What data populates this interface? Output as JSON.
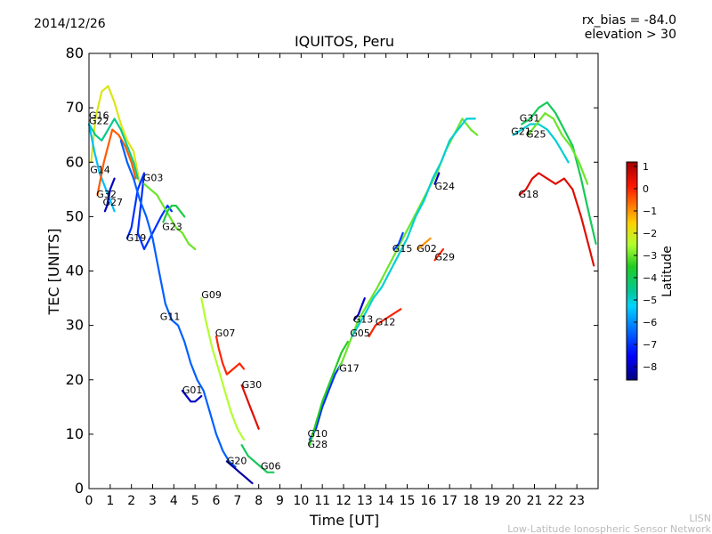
{
  "header": {
    "date": "2014/12/26",
    "bias": "rx_bias = -84.0",
    "elevation": "elevation > 30"
  },
  "credit": {
    "line1": "LISN",
    "line2": "Low-Latitude Ionospheric Sensor Network"
  },
  "colorbar": {
    "label": "Latitude",
    "min": -8.6,
    "max": 1.2,
    "ticks": [
      "1",
      "0",
      "−1",
      "−2",
      "−3",
      "−4",
      "−5",
      "−6",
      "−7",
      "−8"
    ],
    "tick_values": [
      1,
      0,
      -1,
      -2,
      -3,
      -4,
      -5,
      -6,
      -7,
      -8
    ]
  },
  "chart_data": {
    "type": "scatter",
    "title": "IQUITOS, Peru",
    "xlabel": "Time [UT]",
    "ylabel": "TEC [UNITS]",
    "xlim": [
      0,
      24
    ],
    "ylim": [
      0,
      80
    ],
    "xticks": [
      "0",
      "1",
      "2",
      "3",
      "4",
      "5",
      "6",
      "7",
      "8",
      "9",
      "10",
      "11",
      "12",
      "13",
      "14",
      "15",
      "16",
      "17",
      "18",
      "19",
      "20",
      "21",
      "22",
      "23"
    ],
    "yticks": [
      "0",
      "10",
      "20",
      "30",
      "40",
      "50",
      "60",
      "70",
      "80"
    ],
    "color_by": "Latitude",
    "series": [
      {
        "name": "G16",
        "label_at": [
          0.0,
          68
        ],
        "lat": -2.0,
        "points": [
          [
            0.1,
            60
          ],
          [
            0.3,
            68
          ],
          [
            0.6,
            73
          ],
          [
            0.9,
            74
          ],
          [
            1.2,
            71
          ],
          [
            1.5,
            67
          ],
          [
            1.8,
            64
          ],
          [
            2.1,
            62
          ],
          [
            2.4,
            56
          ]
        ]
      },
      {
        "name": "G22",
        "label_at": [
          0.0,
          67
        ],
        "lat": -4.5,
        "points": [
          [
            0.0,
            67
          ],
          [
            0.3,
            65
          ],
          [
            0.6,
            64
          ],
          [
            0.9,
            66
          ],
          [
            1.2,
            68
          ],
          [
            1.5,
            66
          ],
          [
            1.8,
            63
          ],
          [
            2.1,
            60
          ],
          [
            2.3,
            57
          ]
        ]
      },
      {
        "name": "G14",
        "label_at": [
          0.05,
          58
        ],
        "lat": -5.5,
        "points": [
          [
            0.0,
            67
          ],
          [
            0.25,
            62
          ],
          [
            0.5,
            58
          ],
          [
            0.8,
            55
          ],
          [
            1.0,
            53
          ],
          [
            1.2,
            51
          ]
        ]
      },
      {
        "name": "G32",
        "label_at": [
          0.35,
          53.5
        ],
        "lat": -0.5,
        "points": [
          [
            0.4,
            54
          ],
          [
            0.5,
            56
          ],
          [
            0.7,
            60
          ],
          [
            0.9,
            63
          ],
          [
            1.1,
            66
          ],
          [
            1.4,
            65
          ],
          [
            1.7,
            63
          ],
          [
            2.0,
            60
          ],
          [
            2.2,
            57
          ]
        ]
      },
      {
        "name": "G27",
        "label_at": [
          0.65,
          52
        ],
        "lat": -8.0,
        "points": [
          [
            0.75,
            51
          ],
          [
            0.85,
            52
          ],
          [
            1.0,
            55
          ],
          [
            1.2,
            57
          ]
        ]
      },
      {
        "name": "G19",
        "label_at": [
          1.75,
          45.5
        ],
        "lat": -7.0,
        "points": [
          [
            1.8,
            46
          ],
          [
            2.0,
            48
          ],
          [
            2.3,
            55
          ],
          [
            2.6,
            58
          ],
          [
            2.3,
            47
          ],
          [
            2.6,
            44
          ],
          [
            3.0,
            47
          ],
          [
            3.4,
            50
          ],
          [
            3.7,
            52
          ],
          [
            3.9,
            51
          ]
        ]
      },
      {
        "name": "G03",
        "label_at": [
          2.55,
          56.5
        ],
        "lat": -3.0,
        "points": [
          [
            2.6,
            56
          ],
          [
            2.9,
            55
          ],
          [
            3.2,
            54
          ],
          [
            3.5,
            52
          ],
          [
            3.8,
            50
          ],
          [
            4.1,
            48
          ],
          [
            4.4,
            47
          ],
          [
            4.7,
            45
          ],
          [
            5.0,
            44
          ]
        ]
      },
      {
        "name": "G23",
        "label_at": [
          3.45,
          47.5
        ],
        "lat": -3.8,
        "points": [
          [
            3.5,
            49
          ],
          [
            3.7,
            51
          ],
          [
            3.9,
            52
          ],
          [
            4.1,
            52
          ],
          [
            4.3,
            51
          ],
          [
            4.5,
            50
          ]
        ]
      },
      {
        "name": "G11",
        "label_at": [
          3.35,
          31
        ],
        "lat": -6.5,
        "points": [
          [
            1.5,
            64
          ],
          [
            1.8,
            60
          ],
          [
            2.1,
            57
          ],
          [
            2.4,
            53
          ],
          [
            2.7,
            50
          ],
          [
            3.0,
            46
          ],
          [
            3.3,
            40
          ],
          [
            3.6,
            34
          ],
          [
            3.9,
            31
          ],
          [
            4.2,
            30
          ],
          [
            4.5,
            27
          ],
          [
            4.8,
            23
          ],
          [
            5.1,
            20
          ],
          [
            5.4,
            18
          ],
          [
            5.7,
            14
          ],
          [
            6.0,
            10
          ],
          [
            6.3,
            7
          ],
          [
            6.6,
            5
          ],
          [
            6.9,
            4
          ]
        ]
      },
      {
        "name": "G09",
        "label_at": [
          5.3,
          35
        ],
        "lat": -2.5,
        "points": [
          [
            5.3,
            35
          ],
          [
            5.5,
            31
          ],
          [
            5.8,
            26
          ],
          [
            6.1,
            22
          ],
          [
            6.4,
            18
          ],
          [
            6.7,
            14
          ],
          [
            7.0,
            11
          ],
          [
            7.3,
            9
          ]
        ]
      },
      {
        "name": "G07",
        "label_at": [
          5.95,
          28
        ],
        "lat": 0.0,
        "points": [
          [
            6.0,
            28
          ],
          [
            6.1,
            26
          ],
          [
            6.3,
            23
          ],
          [
            6.5,
            21
          ],
          [
            6.8,
            22
          ],
          [
            7.1,
            23
          ],
          [
            7.3,
            22
          ]
        ]
      },
      {
        "name": "G01",
        "label_at": [
          4.4,
          17.5
        ],
        "lat": -8.0,
        "points": [
          [
            4.4,
            18
          ],
          [
            4.6,
            17
          ],
          [
            4.8,
            16
          ],
          [
            5.0,
            16
          ],
          [
            5.3,
            17
          ]
        ]
      },
      {
        "name": "G30",
        "label_at": [
          7.2,
          18.5
        ],
        "lat": 0.5,
        "points": [
          [
            7.2,
            19
          ],
          [
            7.4,
            17
          ],
          [
            7.6,
            15
          ],
          [
            7.8,
            13
          ],
          [
            8.0,
            11
          ]
        ]
      },
      {
        "name": "G20",
        "label_at": [
          6.5,
          4.5
        ],
        "lat": -8.3,
        "points": [
          [
            6.5,
            5
          ],
          [
            6.8,
            4
          ],
          [
            7.1,
            3
          ],
          [
            7.4,
            2
          ],
          [
            7.7,
            1
          ]
        ]
      },
      {
        "name": "G06",
        "label_at": [
          8.1,
          3.5
        ],
        "lat": -4.0,
        "points": [
          [
            7.2,
            8
          ],
          [
            7.5,
            6
          ],
          [
            7.8,
            5
          ],
          [
            8.1,
            4
          ],
          [
            8.4,
            3
          ],
          [
            8.7,
            3
          ]
        ]
      },
      {
        "name": "G10",
        "label_at": [
          10.3,
          9.5
        ],
        "lat": -7.0,
        "points": [
          [
            10.4,
            9
          ],
          [
            10.7,
            11
          ],
          [
            11.0,
            15
          ],
          [
            11.3,
            18
          ],
          [
            11.6,
            21
          ],
          [
            11.9,
            23
          ]
        ]
      },
      {
        "name": "G28",
        "label_at": [
          10.3,
          7.5
        ],
        "lat": -3.5,
        "points": [
          [
            10.4,
            8
          ],
          [
            10.7,
            12
          ],
          [
            11.0,
            16
          ],
          [
            11.3,
            19
          ],
          [
            11.6,
            22
          ],
          [
            11.9,
            25
          ],
          [
            12.2,
            27
          ]
        ]
      },
      {
        "name": "G17",
        "label_at": [
          11.8,
          21.5
        ],
        "lat": -3.0,
        "points": [
          [
            11.8,
            22
          ],
          [
            12.1,
            25
          ],
          [
            12.4,
            28
          ],
          [
            12.7,
            31
          ],
          [
            13.0,
            33
          ],
          [
            13.3,
            35
          ],
          [
            13.6,
            37
          ],
          [
            14.0,
            40
          ],
          [
            14.4,
            43
          ],
          [
            14.8,
            46
          ],
          [
            15.2,
            49
          ],
          [
            15.6,
            52
          ],
          [
            16.0,
            55
          ],
          [
            16.4,
            58
          ],
          [
            16.8,
            62
          ],
          [
            17.2,
            65
          ],
          [
            17.6,
            68
          ],
          [
            18.0,
            66
          ],
          [
            18.3,
            65
          ]
        ]
      },
      {
        "name": "G05",
        "label_at": [
          12.3,
          28
        ],
        "lat": -5.0,
        "points": [
          [
            12.4,
            28
          ],
          [
            12.7,
            30
          ],
          [
            13.0,
            32
          ],
          [
            13.4,
            35
          ],
          [
            13.8,
            37
          ],
          [
            14.2,
            40
          ],
          [
            14.6,
            43
          ],
          [
            15.0,
            46
          ],
          [
            15.4,
            50
          ],
          [
            15.8,
            53
          ],
          [
            16.2,
            57
          ],
          [
            16.6,
            60
          ],
          [
            17.0,
            64
          ],
          [
            17.4,
            66
          ],
          [
            17.8,
            68
          ],
          [
            18.2,
            68
          ]
        ]
      },
      {
        "name": "G13",
        "label_at": [
          12.45,
          30.5
        ],
        "lat": -8.0,
        "points": [
          [
            12.5,
            31
          ],
          [
            12.7,
            32
          ],
          [
            12.9,
            34
          ],
          [
            13.0,
            35
          ]
        ]
      },
      {
        "name": "G12",
        "label_at": [
          13.5,
          30
        ],
        "lat": 0.0,
        "points": [
          [
            13.2,
            28
          ],
          [
            13.5,
            30
          ],
          [
            13.9,
            31
          ],
          [
            14.3,
            32
          ],
          [
            14.7,
            33
          ]
        ]
      },
      {
        "name": "G15",
        "label_at": [
          14.3,
          43.5
        ],
        "lat": -6.8,
        "points": [
          [
            14.4,
            44
          ],
          [
            14.6,
            45
          ],
          [
            14.8,
            47
          ]
        ]
      },
      {
        "name": "G02",
        "label_at": [
          15.45,
          43.5
        ],
        "lat": -1.0,
        "points": [
          [
            15.5,
            44
          ],
          [
            15.8,
            45
          ],
          [
            16.1,
            46
          ]
        ]
      },
      {
        "name": "G29",
        "label_at": [
          16.3,
          42
        ],
        "lat": 0.0,
        "points": [
          [
            16.3,
            42
          ],
          [
            16.5,
            43
          ],
          [
            16.7,
            44
          ]
        ]
      },
      {
        "name": "G24",
        "label_at": [
          16.3,
          55
        ],
        "lat": -8.0,
        "points": [
          [
            16.3,
            56
          ],
          [
            16.4,
            57
          ],
          [
            16.5,
            58
          ]
        ]
      },
      {
        "name": "G31",
        "label_at": [
          20.3,
          67.5
        ],
        "lat": -4.0,
        "points": [
          [
            20.4,
            67
          ],
          [
            20.8,
            68
          ],
          [
            21.2,
            70
          ],
          [
            21.6,
            71
          ],
          [
            22.0,
            69
          ],
          [
            22.4,
            66
          ],
          [
            22.8,
            63
          ],
          [
            23.2,
            57
          ],
          [
            23.6,
            50
          ],
          [
            23.9,
            45
          ]
        ]
      },
      {
        "name": "G21",
        "label_at": [
          19.9,
          65
        ],
        "lat": -5.0,
        "points": [
          [
            20.0,
            65
          ],
          [
            20.4,
            66
          ],
          [
            20.8,
            67
          ],
          [
            21.2,
            67
          ],
          [
            21.6,
            66
          ],
          [
            22.0,
            64
          ],
          [
            22.3,
            62
          ],
          [
            22.6,
            60
          ]
        ]
      },
      {
        "name": "G25",
        "label_at": [
          20.6,
          64.5
        ],
        "lat": -3.0,
        "points": [
          [
            20.7,
            65
          ],
          [
            21.1,
            67
          ],
          [
            21.5,
            69
          ],
          [
            21.9,
            68
          ],
          [
            22.3,
            65
          ],
          [
            22.7,
            63
          ],
          [
            23.1,
            60
          ],
          [
            23.5,
            56
          ]
        ]
      },
      {
        "name": "G18",
        "label_at": [
          20.25,
          53.5
        ],
        "lat": 0.5,
        "points": [
          [
            20.3,
            54
          ],
          [
            20.6,
            55
          ],
          [
            20.9,
            57
          ],
          [
            21.2,
            58
          ],
          [
            21.6,
            57
          ],
          [
            22.0,
            56
          ],
          [
            22.4,
            57
          ],
          [
            22.8,
            55
          ],
          [
            23.2,
            50
          ],
          [
            23.6,
            44
          ],
          [
            23.8,
            41
          ]
        ]
      }
    ]
  }
}
